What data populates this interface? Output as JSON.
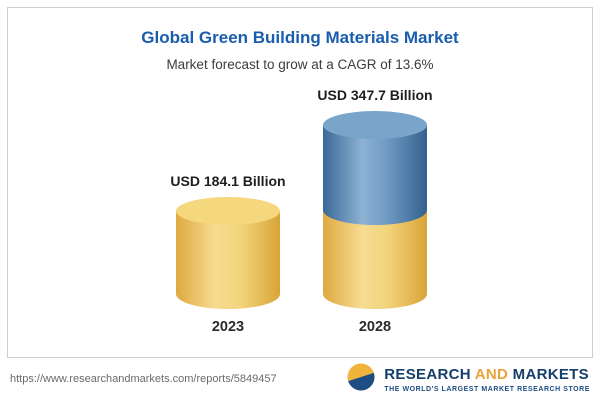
{
  "chart_data": {
    "type": "bar",
    "style": "stacked-cylinder",
    "title": "Global Green Building Materials Market",
    "subtitle": "Market forecast to grow at a CAGR of 13.6%",
    "cagr_percent": 13.6,
    "unit": "USD Billion",
    "categories": [
      "2023",
      "2028"
    ],
    "values": [
      184.1,
      347.7
    ],
    "value_labels": [
      "USD 184.1 Billion",
      "USD 347.7 Billion"
    ],
    "colors": {
      "base": "#F2CF6F",
      "growth": "#4E82B6",
      "title": "#1A5DAD"
    },
    "legend": "none",
    "grid": "off",
    "note": "2028 cylinder is stacked: yellow base equals the 2023 level, blue top segment shows forecast growth"
  },
  "footer": {
    "report_url": "https://www.researchandmarkets.com/reports/5849457",
    "logo": {
      "word1": "RESEARCH",
      "word2": "AND",
      "word3": "MARKETS",
      "tagline": "THE WORLD'S LARGEST MARKET RESEARCH STORE"
    }
  }
}
